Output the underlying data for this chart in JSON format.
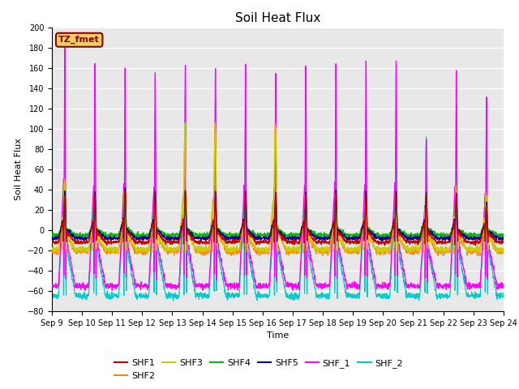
{
  "title": "Soil Heat Flux",
  "xlabel": "Time",
  "ylabel": "Soil Heat Flux",
  "ylim": [
    -80,
    200
  ],
  "yticks": [
    -80,
    -60,
    -40,
    -20,
    0,
    20,
    40,
    60,
    80,
    100,
    120,
    140,
    160,
    180,
    200
  ],
  "x_tick_labels": [
    "Sep 9",
    "Sep 10",
    "Sep 11",
    "Sep 12",
    "Sep 13",
    "Sep 14",
    "Sep 15",
    "Sep 16",
    "Sep 17",
    "Sep 18",
    "Sep 19",
    "Sep 20",
    "Sep 21",
    "Sep 22",
    "Sep 23",
    "Sep 24"
  ],
  "series_colors": {
    "SHF1": "#cc0000",
    "SHF2": "#ff8800",
    "SHF3": "#cccc00",
    "SHF4": "#00bb00",
    "SHF5": "#000099",
    "SHF_1": "#ff00ff",
    "SHF_2": "#00cccc"
  },
  "annotation_text": "TZ_fmet",
  "annotation_color": "#8B0000",
  "annotation_bg": "#f0d060",
  "title_fontsize": 11,
  "tick_fontsize": 7,
  "legend_fontsize": 8
}
